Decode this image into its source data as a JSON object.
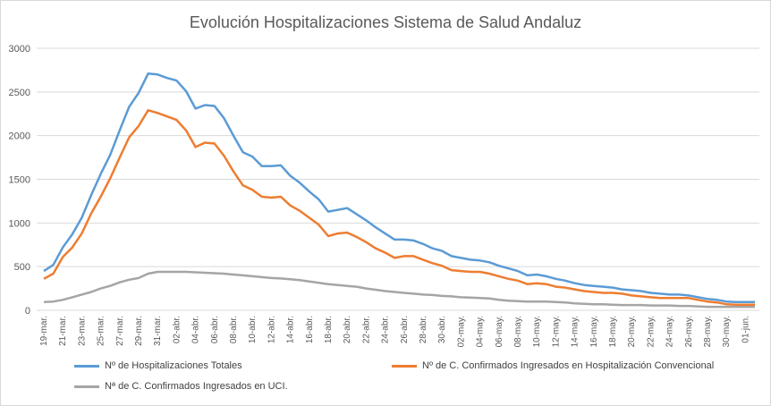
{
  "chart_data": {
    "type": "line",
    "title": "Evolución Hospitalizaciones Sistema de Salud Andaluz",
    "xlabel": "",
    "ylabel": "",
    "ylim": [
      0,
      3000
    ],
    "yticks": [
      "0",
      "500",
      "1000",
      "1500",
      "2000",
      "2500",
      "3000"
    ],
    "grid": true,
    "legend_position": "bottom",
    "x_tick_labels": [
      "19-mar.",
      "21-mar.",
      "23-mar.",
      "25-mar.",
      "27-mar.",
      "29-mar.",
      "31-mar.",
      "02-abr.",
      "04-abr.",
      "06-abr.",
      "08-abr.",
      "10-abr.",
      "12-abr.",
      "14-abr.",
      "16-abr.",
      "18-abr.",
      "20-abr.",
      "22-abr.",
      "24-abr.",
      "26-abr.",
      "28-abr.",
      "30-abr.",
      "02-may.",
      "04-may.",
      "06-may.",
      "08-may.",
      "10-may.",
      "12-may.",
      "14-may.",
      "16-may.",
      "18-may.",
      "20-may.",
      "22-may.",
      "24-may.",
      "26-may.",
      "28-may.",
      "30-may.",
      "01-jun."
    ],
    "series": [
      {
        "name": "Nº de Hospitalizaciones Totales",
        "color": "#5b9bd5",
        "values": [
          450,
          520,
          720,
          870,
          1060,
          1320,
          1560,
          1780,
          2060,
          2330,
          2490,
          2710,
          2700,
          2660,
          2630,
          2510,
          2310,
          2350,
          2340,
          2200,
          2000,
          1810,
          1760,
          1650,
          1650,
          1660,
          1540,
          1460,
          1360,
          1270,
          1130,
          1150,
          1170,
          1100,
          1030,
          950,
          880,
          810,
          810,
          800,
          760,
          710,
          680,
          620,
          600,
          580,
          570,
          550,
          510,
          480,
          450,
          400,
          410,
          390,
          360,
          340,
          310,
          290,
          280,
          270,
          260,
          240,
          230,
          220,
          200,
          190,
          180,
          180,
          170,
          150,
          130,
          120,
          100,
          95,
          95,
          95
        ]
      },
      {
        "name": "Nº de C. Confirmados Ingresados en Hospitalización Convencional",
        "color": "#ed7d31",
        "values": [
          360,
          420,
          610,
          720,
          880,
          1110,
          1300,
          1510,
          1750,
          1980,
          2110,
          2290,
          2260,
          2220,
          2180,
          2060,
          1870,
          1920,
          1910,
          1770,
          1590,
          1430,
          1380,
          1300,
          1290,
          1300,
          1200,
          1140,
          1060,
          980,
          850,
          880,
          890,
          840,
          780,
          710,
          660,
          600,
          620,
          620,
          580,
          540,
          510,
          460,
          450,
          440,
          440,
          420,
          390,
          360,
          340,
          300,
          310,
          300,
          270,
          260,
          240,
          220,
          210,
          200,
          200,
          190,
          170,
          160,
          150,
          140,
          140,
          140,
          140,
          120,
          100,
          90,
          70,
          65,
          65,
          65
        ]
      },
      {
        "name": "Nª de C. Confirmados Ingresados en UCI.",
        "color": "#a5a5a5",
        "values": [
          95,
          100,
          120,
          150,
          180,
          210,
          250,
          280,
          320,
          350,
          370,
          420,
          440,
          440,
          440,
          440,
          435,
          430,
          425,
          420,
          410,
          400,
          390,
          380,
          370,
          365,
          355,
          345,
          330,
          315,
          300,
          290,
          280,
          270,
          250,
          235,
          220,
          210,
          200,
          190,
          180,
          175,
          165,
          160,
          150,
          145,
          140,
          135,
          120,
          110,
          105,
          100,
          100,
          100,
          95,
          90,
          80,
          75,
          70,
          70,
          65,
          60,
          60,
          60,
          55,
          55,
          55,
          50,
          50,
          45,
          40,
          40,
          40,
          40,
          40,
          40
        ]
      }
    ]
  }
}
